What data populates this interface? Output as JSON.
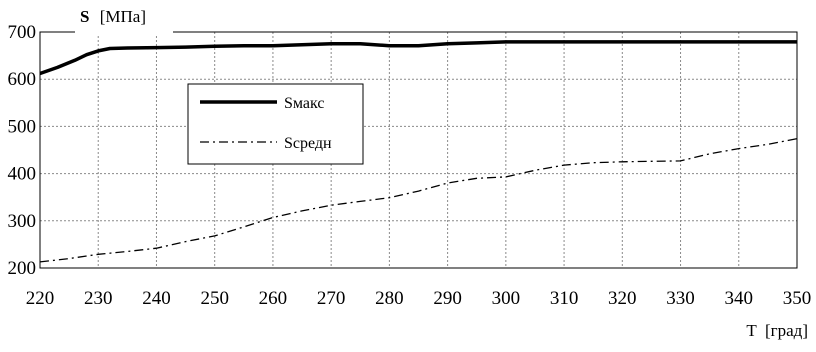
{
  "chart_data": {
    "type": "line",
    "ylabel_symbol": "S",
    "ylabel_unit": "[МПа]",
    "xlabel": "T  [град]",
    "xlim": [
      220,
      350
    ],
    "ylim": [
      200,
      700
    ],
    "xticks": [
      220,
      230,
      240,
      250,
      260,
      270,
      280,
      290,
      300,
      310,
      320,
      330,
      340,
      350
    ],
    "yticks": [
      200,
      300,
      400,
      500,
      600,
      700
    ],
    "grid": true,
    "legend_position": "upper-left inside plot",
    "series": [
      {
        "name": "Sмакс",
        "style": "solid-thick",
        "color": "#000000",
        "x": [
          220,
          223,
          226,
          228,
          230,
          232,
          235,
          240,
          245,
          250,
          255,
          260,
          265,
          270,
          275,
          280,
          285,
          290,
          295,
          300,
          310,
          320,
          330,
          340,
          350
        ],
        "y": [
          612,
          625,
          640,
          652,
          660,
          665,
          666,
          667,
          668,
          670,
          671,
          671,
          673,
          675,
          675,
          671,
          671,
          675,
          677,
          679,
          679,
          679,
          679,
          679,
          679
        ]
      },
      {
        "name": "Sсредн",
        "style": "dash-dot",
        "color": "#000000",
        "x": [
          220,
          225,
          230,
          235,
          240,
          245,
          250,
          255,
          260,
          265,
          270,
          275,
          280,
          285,
          290,
          295,
          300,
          305,
          310,
          315,
          320,
          325,
          330,
          335,
          340,
          345,
          350
        ],
        "y": [
          213,
          220,
          229,
          235,
          242,
          256,
          268,
          287,
          307,
          321,
          333,
          341,
          349,
          363,
          380,
          390,
          393,
          407,
          418,
          423,
          425,
          426,
          427,
          442,
          453,
          462,
          474
        ]
      }
    ]
  }
}
